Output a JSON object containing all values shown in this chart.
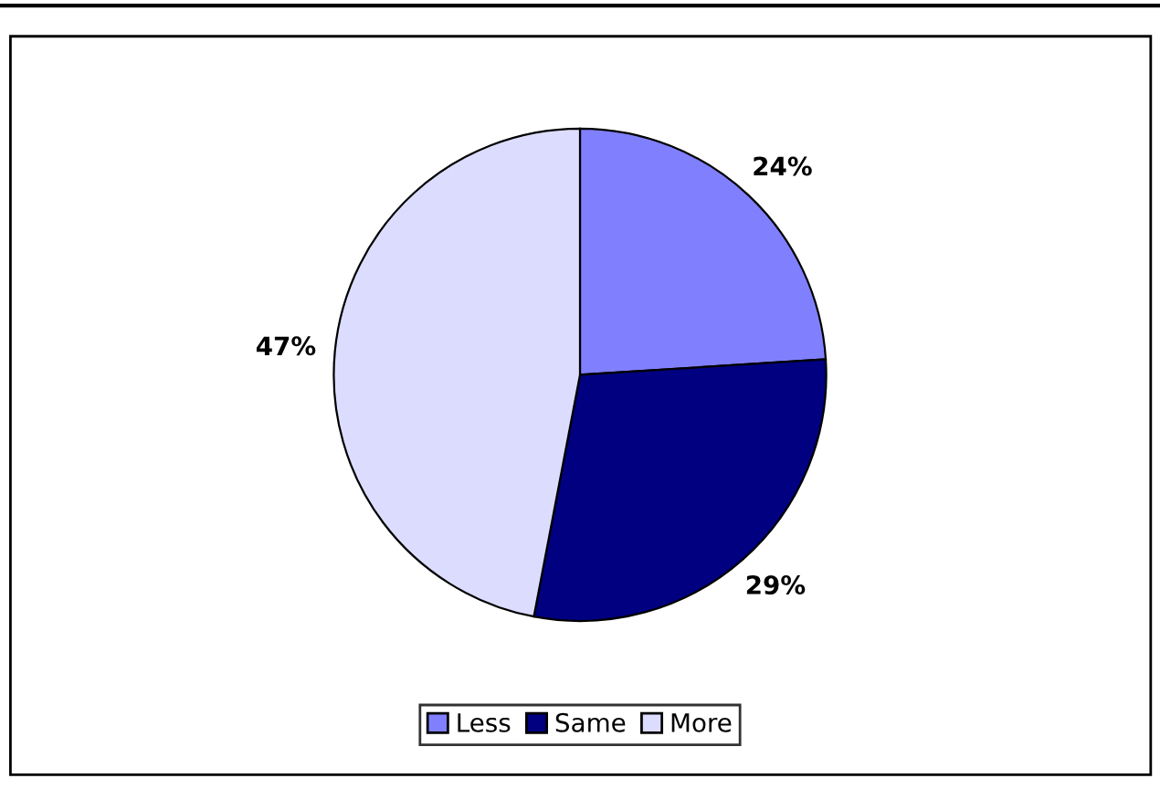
{
  "chart_data": {
    "type": "pie",
    "categories": [
      "Less",
      "Same",
      "More"
    ],
    "values": [
      24,
      29,
      47
    ],
    "value_labels": [
      "24%",
      "29%",
      "47%"
    ],
    "colors": [
      "#8080ff",
      "#000080",
      "#dcdcff"
    ],
    "legend": "bottom"
  }
}
